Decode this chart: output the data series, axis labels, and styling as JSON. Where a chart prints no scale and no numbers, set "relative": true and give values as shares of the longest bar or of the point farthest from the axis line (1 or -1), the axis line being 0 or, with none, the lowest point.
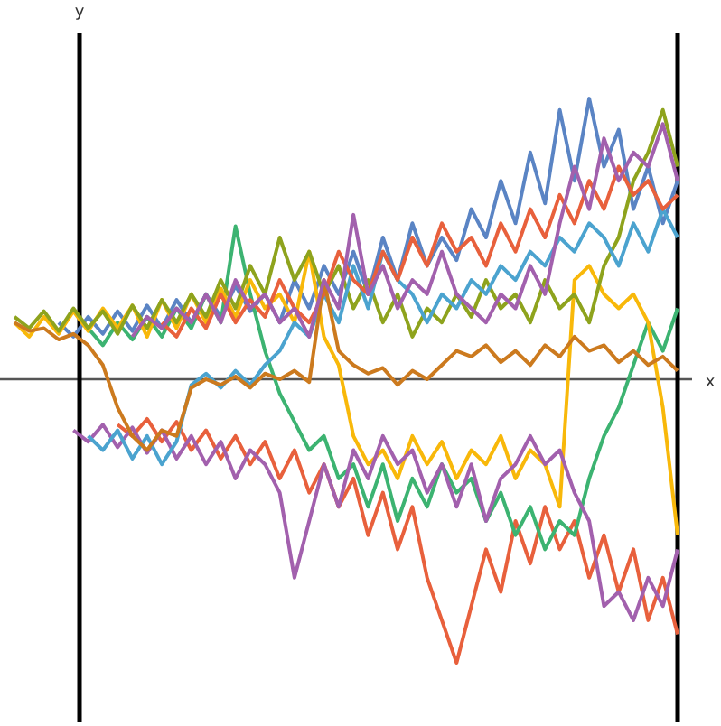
{
  "chart_data": {
    "type": "line",
    "relative": true,
    "xlabel": "x",
    "ylabel": "y",
    "categories": [
      null,
      null,
      null,
      null,
      null,
      null,
      null,
      null,
      null,
      null,
      null,
      null,
      null,
      null,
      null,
      null,
      null,
      null,
      null,
      null,
      null,
      null,
      null,
      null,
      null,
      null,
      null,
      null,
      null,
      null,
      null,
      null,
      null,
      null,
      null,
      null,
      null,
      null,
      null,
      null,
      null,
      null,
      null,
      null,
      null,
      null
    ],
    "series": [
      {
        "color": "#5a84c4",
        "values": [
          null,
          null,
          null,
          0.2,
          0.15,
          0.22,
          0.16,
          0.24,
          0.17,
          0.26,
          0.18,
          0.28,
          0.2,
          0.3,
          0.22,
          0.33,
          0.24,
          0.3,
          0.2,
          0.35,
          0.25,
          0.4,
          0.3,
          0.45,
          0.3,
          0.5,
          0.35,
          0.55,
          0.4,
          0.5,
          0.42,
          0.6,
          0.5,
          0.7,
          0.55,
          0.8,
          0.62,
          0.95,
          0.7,
          0.99,
          0.75,
          0.88,
          0.6,
          0.75,
          0.55,
          0.7
        ]
      },
      {
        "color": "#e8603c",
        "values": [
          null,
          null,
          null,
          null,
          null,
          null,
          null,
          -0.16,
          -0.2,
          -0.14,
          -0.22,
          -0.15,
          -0.25,
          -0.18,
          -0.28,
          -0.2,
          -0.3,
          -0.22,
          -0.35,
          -0.25,
          -0.4,
          -0.3,
          -0.45,
          -0.35,
          -0.55,
          -0.4,
          -0.6,
          -0.45,
          -0.7,
          -0.85,
          -1,
          -0.8,
          -0.6,
          -0.75,
          -0.5,
          -0.65,
          -0.45,
          -0.6,
          -0.5,
          -0.7,
          -0.55,
          -0.75,
          -0.6,
          -0.85,
          -0.7,
          -0.9
        ]
      },
      {
        "color": "#3cb371",
        "values": [
          null,
          null,
          null,
          null,
          null,
          0.18,
          0.12,
          0.2,
          0.14,
          0.22,
          0.15,
          0.25,
          0.18,
          0.3,
          0.2,
          0.54,
          0.3,
          0.1,
          -0.05,
          -0.15,
          -0.25,
          -0.2,
          -0.35,
          -0.3,
          -0.45,
          -0.3,
          -0.5,
          -0.35,
          -0.45,
          -0.3,
          -0.4,
          -0.35,
          -0.5,
          -0.4,
          -0.55,
          -0.45,
          -0.6,
          -0.5,
          -0.55,
          -0.35,
          -0.2,
          -0.1,
          0.05,
          0.2,
          0.1,
          0.25
        ]
      },
      {
        "color": "#f8b80a",
        "values": [
          0.2,
          0.15,
          0.22,
          0.16,
          0.24,
          0.17,
          0.25,
          0.18,
          0.26,
          0.15,
          0.28,
          0.18,
          0.3,
          0.2,
          0.32,
          0.22,
          0.35,
          0.25,
          0.3,
          0.2,
          0.45,
          0.15,
          0.05,
          -0.2,
          -0.3,
          -0.25,
          -0.35,
          -0.2,
          -0.3,
          -0.22,
          -0.35,
          -0.25,
          -0.3,
          -0.2,
          -0.35,
          -0.25,
          -0.3,
          -0.45,
          0.35,
          0.4,
          0.3,
          0.25,
          0.3,
          0.2,
          -0.1,
          -0.55
        ]
      },
      {
        "color": "#a260ad",
        "values": [
          null,
          null,
          null,
          null,
          -0.18,
          -0.22,
          -0.16,
          -0.24,
          -0.17,
          -0.26,
          -0.18,
          -0.28,
          -0.2,
          -0.3,
          -0.22,
          -0.35,
          -0.25,
          -0.3,
          -0.4,
          -0.7,
          -0.5,
          -0.3,
          -0.45,
          -0.25,
          -0.35,
          -0.2,
          -0.3,
          -0.25,
          -0.4,
          -0.3,
          -0.45,
          -0.3,
          -0.5,
          -0.35,
          -0.3,
          -0.2,
          -0.3,
          -0.25,
          -0.4,
          -0.5,
          -0.8,
          -0.75,
          -0.85,
          -0.7,
          -0.8,
          -0.6
        ]
      },
      {
        "color": "#8ea31d",
        "values": [
          0.22,
          0.18,
          0.24,
          0.17,
          0.25,
          0.18,
          0.24,
          0.16,
          0.26,
          0.18,
          0.28,
          0.2,
          0.3,
          0.22,
          0.35,
          0.25,
          0.4,
          0.3,
          0.5,
          0.35,
          0.45,
          0.3,
          0.4,
          0.25,
          0.35,
          0.2,
          0.3,
          0.15,
          0.25,
          0.2,
          0.3,
          0.22,
          0.35,
          0.25,
          0.3,
          0.2,
          0.35,
          0.25,
          0.3,
          0.2,
          0.4,
          0.5,
          0.7,
          0.8,
          0.95,
          0.75
        ]
      },
      {
        "color": "#4ba3cf",
        "values": [
          null,
          null,
          null,
          null,
          null,
          -0.2,
          -0.25,
          -0.18,
          -0.28,
          -0.2,
          -0.3,
          -0.22,
          -0.02,
          0.02,
          -0.03,
          0.03,
          -0.02,
          0.05,
          0.1,
          0.2,
          0.15,
          0.3,
          0.2,
          0.4,
          0.25,
          0.45,
          0.35,
          0.3,
          0.2,
          0.3,
          0.25,
          0.35,
          0.3,
          0.4,
          0.35,
          0.45,
          0.4,
          0.5,
          0.45,
          0.55,
          0.5,
          0.4,
          0.55,
          0.45,
          0.6,
          0.5
        ]
      },
      {
        "color": "#e8603c",
        "values": [
          null,
          null,
          null,
          null,
          null,
          null,
          null,
          null,
          null,
          null,
          0.2,
          0.15,
          0.25,
          0.18,
          0.3,
          0.2,
          0.28,
          0.22,
          0.35,
          0.25,
          0.2,
          0.3,
          0.45,
          0.35,
          0.3,
          0.45,
          0.35,
          0.5,
          0.4,
          0.55,
          0.45,
          0.5,
          0.4,
          0.55,
          0.45,
          0.6,
          0.5,
          0.65,
          0.55,
          0.7,
          0.6,
          0.75,
          0.65,
          0.7,
          0.6,
          0.65
        ]
      },
      {
        "color": "#cc7a1e",
        "values": [
          0.2,
          0.17,
          0.18,
          0.14,
          0.16,
          0.12,
          0.05,
          -0.1,
          -0.2,
          -0.25,
          -0.18,
          -0.2,
          -0.03,
          0.0,
          -0.02,
          0.01,
          -0.03,
          0.02,
          0.0,
          0.03,
          -0.01,
          0.35,
          0.1,
          0.05,
          0.02,
          0.04,
          -0.02,
          0.03,
          0.0,
          0.05,
          0.1,
          0.08,
          0.12,
          0.06,
          0.1,
          0.05,
          0.12,
          0.08,
          0.15,
          0.1,
          0.12,
          0.06,
          0.1,
          0.05,
          0.08,
          0.03
        ]
      },
      {
        "color": "#a260ad",
        "values": [
          null,
          null,
          null,
          null,
          null,
          null,
          null,
          null,
          0.15,
          0.22,
          0.18,
          0.25,
          0.2,
          0.3,
          0.2,
          0.35,
          0.25,
          0.3,
          0.2,
          0.25,
          0.15,
          0.35,
          0.25,
          0.58,
          0.3,
          0.4,
          0.25,
          0.35,
          0.3,
          0.45,
          0.3,
          0.25,
          0.2,
          0.3,
          0.25,
          0.4,
          0.3,
          0.55,
          0.75,
          0.6,
          0.85,
          0.7,
          0.8,
          0.75,
          0.9,
          0.7
        ]
      }
    ]
  }
}
